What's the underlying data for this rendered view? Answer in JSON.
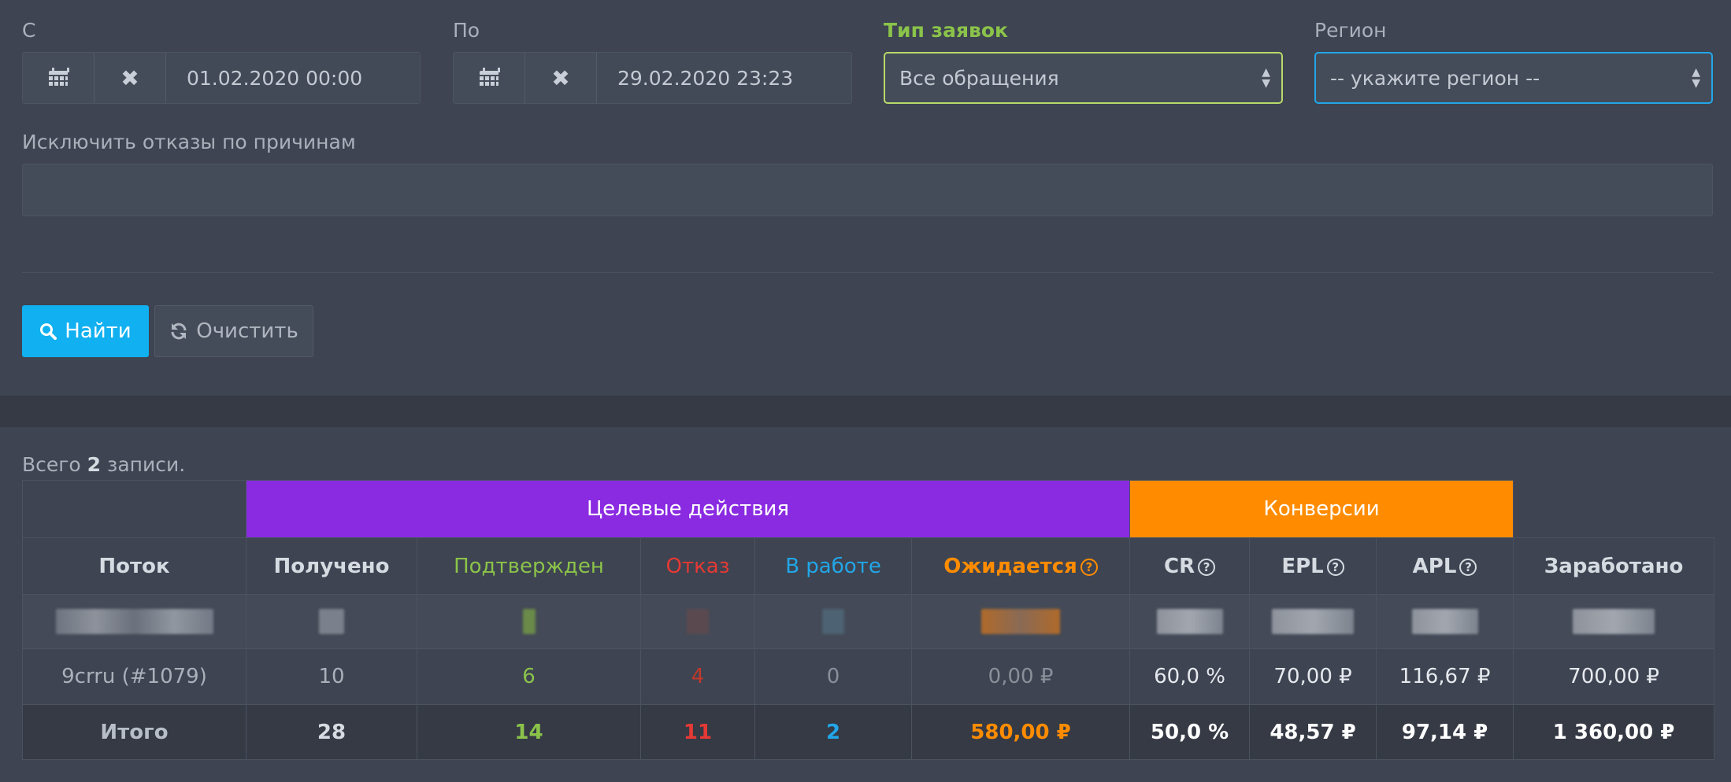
{
  "filters": {
    "from": {
      "label": "С",
      "value": "01.02.2020 00:00"
    },
    "to": {
      "label": "По",
      "value": "29.02.2020 23:23"
    },
    "request_type": {
      "label": "Тип заявок",
      "value": "Все обращения"
    },
    "region": {
      "label": "Регион",
      "value": "-- укажите регион --"
    },
    "exclude": {
      "label": "Исключить отказы по причинам",
      "value": ""
    }
  },
  "buttons": {
    "find": "Найти",
    "clear": "Очистить"
  },
  "summary": {
    "prefix": "Всего",
    "count": "2",
    "suffix": "записи."
  },
  "table": {
    "groups": {
      "targets": "Целевые действия",
      "conversions": "Конверсии"
    },
    "columns": {
      "stream": "Поток",
      "received": "Получено",
      "confirmed": "Подтвержден",
      "refused": "Отказ",
      "in_work": "В работе",
      "expected": "Ожидается",
      "cr": "CR",
      "epl": "EPL",
      "apl": "APL",
      "earned": "Заработано"
    },
    "row": {
      "stream": "9crru (#1079)",
      "received": "10",
      "confirmed": "6",
      "refused": "4",
      "in_work": "0",
      "expected": "0,00 ₽",
      "cr": "60,0 %",
      "epl": "70,00 ₽",
      "apl": "116,67 ₽",
      "earned": "700,00 ₽"
    },
    "total": {
      "stream": "Итого",
      "received": "28",
      "confirmed": "14",
      "refused": "11",
      "in_work": "2",
      "expected": "580,00 ₽",
      "cr": "50,0 %",
      "epl": "48,57 ₽",
      "apl": "97,14 ₽",
      "earned": "1 360,00 ₽"
    }
  },
  "colors": {
    "accent_blue": "#11b0f0",
    "purple": "#8a2be2",
    "orange": "#ff8c00",
    "green": "#8bc34a",
    "red": "#e53935"
  }
}
